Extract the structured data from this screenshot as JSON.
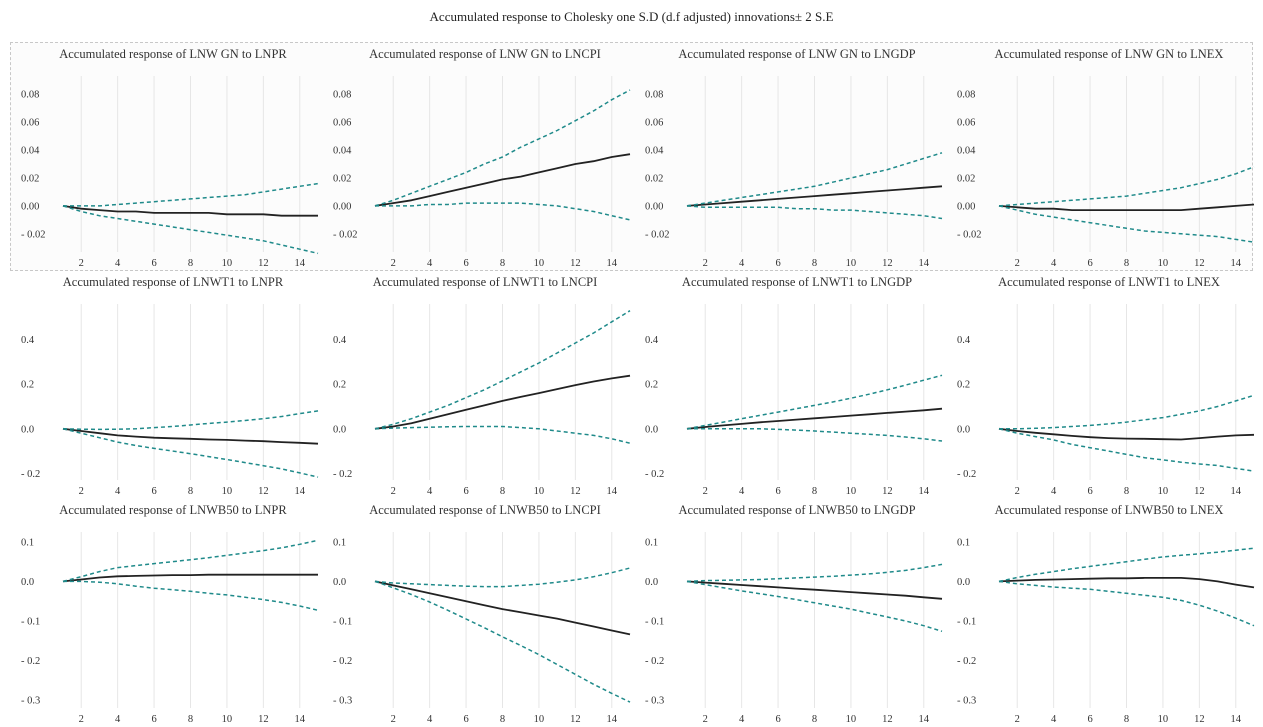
{
  "title": "Accumulated response to Cholesky one S.D (d.f adjusted) innovations± 2 S.E",
  "colors": {
    "response": "#222222",
    "band": "#1f8a8a",
    "grid": "#e6e6e6"
  },
  "row_ticks": [
    {
      "values": [
        0.08,
        0.06,
        0.04,
        0.02,
        0.0,
        -0.02
      ],
      "labels": [
        "0.08",
        "0.06",
        "0.04",
        "0.02",
        "0.00",
        "- 0.02"
      ]
    },
    {
      "values": [
        0.4,
        0.2,
        0.0,
        -0.2
      ],
      "labels": [
        "0.4",
        "0.2",
        "0.0",
        "- 0.2"
      ]
    },
    {
      "values": [
        0.1,
        0.0,
        -0.1,
        -0.2,
        -0.3
      ],
      "labels": [
        "0.1",
        "0.0",
        "- 0.1",
        "- 0.2",
        "- 0.3"
      ]
    }
  ],
  "x_ticks": [
    2,
    4,
    6,
    8,
    10,
    12,
    14
  ],
  "chart_data": [
    {
      "type": "line",
      "title": "Accumulated response of LNW GN to LNPR",
      "xlim": [
        1,
        15
      ],
      "ylim": [
        -0.033,
        0.093
      ],
      "x": [
        1,
        2,
        3,
        4,
        5,
        6,
        7,
        8,
        9,
        10,
        11,
        12,
        13,
        14,
        15
      ],
      "series": [
        {
          "role": "response",
          "values": [
            0.0,
            -0.002,
            -0.003,
            -0.004,
            -0.004,
            -0.005,
            -0.005,
            -0.005,
            -0.005,
            -0.006,
            -0.006,
            -0.006,
            -0.007,
            -0.007,
            -0.007
          ]
        },
        {
          "role": "upper",
          "values": [
            0.0,
            0.0,
            0.0,
            0.001,
            0.002,
            0.003,
            0.004,
            0.005,
            0.006,
            0.007,
            0.008,
            0.01,
            0.012,
            0.014,
            0.016
          ]
        },
        {
          "role": "lower",
          "values": [
            0.0,
            -0.004,
            -0.007,
            -0.009,
            -0.011,
            -0.013,
            -0.015,
            -0.017,
            -0.019,
            -0.021,
            -0.023,
            -0.025,
            -0.028,
            -0.031,
            -0.034
          ]
        }
      ]
    },
    {
      "type": "line",
      "title": "Accumulated response of LNW GN to LNCPI",
      "xlim": [
        1,
        15
      ],
      "ylim": [
        -0.033,
        0.093
      ],
      "x": [
        1,
        2,
        3,
        4,
        5,
        6,
        7,
        8,
        9,
        10,
        11,
        12,
        13,
        14,
        15
      ],
      "series": [
        {
          "role": "response",
          "values": [
            0.0,
            0.002,
            0.004,
            0.007,
            0.01,
            0.013,
            0.016,
            0.019,
            0.021,
            0.024,
            0.027,
            0.03,
            0.032,
            0.035,
            0.037
          ]
        },
        {
          "role": "upper",
          "values": [
            0.0,
            0.004,
            0.009,
            0.014,
            0.019,
            0.024,
            0.03,
            0.035,
            0.042,
            0.048,
            0.054,
            0.061,
            0.068,
            0.076,
            0.083
          ]
        },
        {
          "role": "lower",
          "values": [
            0.0,
            0.0,
            0.0,
            0.001,
            0.001,
            0.002,
            0.002,
            0.002,
            0.002,
            0.001,
            0.0,
            -0.002,
            -0.004,
            -0.007,
            -0.01
          ]
        }
      ]
    },
    {
      "type": "line",
      "title": "Accumulated response of LNW GN to LNGDP",
      "xlim": [
        1,
        15
      ],
      "ylim": [
        -0.033,
        0.093
      ],
      "x": [
        1,
        2,
        3,
        4,
        5,
        6,
        7,
        8,
        9,
        10,
        11,
        12,
        13,
        14,
        15
      ],
      "series": [
        {
          "role": "response",
          "values": [
            0.0,
            0.001,
            0.002,
            0.003,
            0.004,
            0.005,
            0.006,
            0.007,
            0.008,
            0.009,
            0.01,
            0.011,
            0.012,
            0.013,
            0.014
          ]
        },
        {
          "role": "upper",
          "values": [
            0.0,
            0.002,
            0.004,
            0.006,
            0.008,
            0.01,
            0.012,
            0.014,
            0.017,
            0.02,
            0.023,
            0.026,
            0.03,
            0.034,
            0.038
          ]
        },
        {
          "role": "lower",
          "values": [
            0.0,
            -0.001,
            -0.001,
            -0.001,
            -0.001,
            -0.001,
            -0.002,
            -0.002,
            -0.003,
            -0.003,
            -0.004,
            -0.005,
            -0.006,
            -0.007,
            -0.009
          ]
        }
      ]
    },
    {
      "type": "line",
      "title": "Accumulated response of LNW GN to LNEX",
      "xlim": [
        1,
        15
      ],
      "ylim": [
        -0.033,
        0.093
      ],
      "x": [
        1,
        2,
        3,
        4,
        5,
        6,
        7,
        8,
        9,
        10,
        11,
        12,
        13,
        14,
        15
      ],
      "series": [
        {
          "role": "response",
          "values": [
            0.0,
            -0.001,
            -0.002,
            -0.002,
            -0.003,
            -0.003,
            -0.003,
            -0.003,
            -0.003,
            -0.003,
            -0.003,
            -0.002,
            -0.001,
            0.0,
            0.001
          ]
        },
        {
          "role": "upper",
          "values": [
            0.0,
            0.001,
            0.002,
            0.003,
            0.004,
            0.005,
            0.006,
            0.007,
            0.009,
            0.011,
            0.013,
            0.016,
            0.019,
            0.023,
            0.028
          ]
        },
        {
          "role": "lower",
          "values": [
            0.0,
            -0.003,
            -0.006,
            -0.008,
            -0.01,
            -0.012,
            -0.014,
            -0.016,
            -0.018,
            -0.019,
            -0.02,
            -0.021,
            -0.022,
            -0.024,
            -0.026
          ]
        }
      ]
    },
    {
      "type": "line",
      "title": "Accumulated response of LNWT1 to LNPR",
      "xlim": [
        1,
        15
      ],
      "ylim": [
        -0.23,
        0.56
      ],
      "x": [
        1,
        2,
        3,
        4,
        5,
        6,
        7,
        8,
        9,
        10,
        11,
        12,
        13,
        14,
        15
      ],
      "series": [
        {
          "role": "response",
          "values": [
            0.0,
            -0.01,
            -0.02,
            -0.03,
            -0.035,
            -0.04,
            -0.043,
            -0.045,
            -0.048,
            -0.05,
            -0.053,
            -0.056,
            -0.06,
            -0.063,
            -0.067
          ]
        },
        {
          "role": "upper",
          "values": [
            0.0,
            -0.002,
            -0.003,
            -0.002,
            0.0,
            0.005,
            0.01,
            0.017,
            0.024,
            0.03,
            0.037,
            0.045,
            0.055,
            0.068,
            0.08
          ]
        },
        {
          "role": "lower",
          "values": [
            0.0,
            -0.02,
            -0.04,
            -0.06,
            -0.075,
            -0.088,
            -0.1,
            -0.112,
            -0.125,
            -0.138,
            -0.152,
            -0.166,
            -0.18,
            -0.198,
            -0.217
          ]
        }
      ]
    },
    {
      "type": "line",
      "title": "Accumulated response of LNWT1 to LNCPI",
      "xlim": [
        1,
        15
      ],
      "ylim": [
        -0.23,
        0.56
      ],
      "x": [
        1,
        2,
        3,
        4,
        5,
        6,
        7,
        8,
        9,
        10,
        11,
        12,
        13,
        14,
        15
      ],
      "series": [
        {
          "role": "response",
          "values": [
            0.0,
            0.01,
            0.025,
            0.045,
            0.065,
            0.085,
            0.105,
            0.125,
            0.143,
            0.16,
            0.178,
            0.196,
            0.212,
            0.226,
            0.238
          ]
        },
        {
          "role": "upper",
          "values": [
            0.0,
            0.02,
            0.045,
            0.075,
            0.105,
            0.14,
            0.175,
            0.215,
            0.255,
            0.295,
            0.34,
            0.385,
            0.43,
            0.48,
            0.53
          ]
        },
        {
          "role": "lower",
          "values": [
            0.0,
            0.003,
            0.005,
            0.007,
            0.009,
            0.01,
            0.01,
            0.01,
            0.005,
            0.0,
            -0.01,
            -0.02,
            -0.03,
            -0.045,
            -0.065
          ]
        }
      ]
    },
    {
      "type": "line",
      "title": "Accumulated response of LNWT1 to LNGDP",
      "xlim": [
        1,
        15
      ],
      "ylim": [
        -0.23,
        0.56
      ],
      "x": [
        1,
        2,
        3,
        4,
        5,
        6,
        7,
        8,
        9,
        10,
        11,
        12,
        13,
        14,
        15
      ],
      "series": [
        {
          "role": "response",
          "values": [
            0.0,
            0.008,
            0.015,
            0.022,
            0.029,
            0.035,
            0.041,
            0.047,
            0.053,
            0.059,
            0.065,
            0.071,
            0.077,
            0.083,
            0.09
          ]
        },
        {
          "role": "upper",
          "values": [
            0.0,
            0.015,
            0.03,
            0.045,
            0.06,
            0.075,
            0.09,
            0.105,
            0.12,
            0.137,
            0.155,
            0.175,
            0.196,
            0.218,
            0.24
          ]
        },
        {
          "role": "lower",
          "values": [
            0.0,
            0.0,
            0.0,
            0.0,
            0.0,
            -0.003,
            -0.006,
            -0.01,
            -0.015,
            -0.02,
            -0.025,
            -0.03,
            -0.037,
            -0.045,
            -0.055
          ]
        }
      ]
    },
    {
      "type": "line",
      "title": "Accumulated response of LNWT1 to LNEX",
      "xlim": [
        1,
        15
      ],
      "ylim": [
        -0.23,
        0.56
      ],
      "x": [
        1,
        2,
        3,
        4,
        5,
        6,
        7,
        8,
        9,
        10,
        11,
        12,
        13,
        14,
        15
      ],
      "series": [
        {
          "role": "response",
          "values": [
            0.0,
            -0.01,
            -0.018,
            -0.025,
            -0.032,
            -0.038,
            -0.042,
            -0.044,
            -0.045,
            -0.047,
            -0.048,
            -0.042,
            -0.035,
            -0.03,
            -0.027
          ]
        },
        {
          "role": "upper",
          "values": [
            0.0,
            0.0,
            0.002,
            0.005,
            0.01,
            0.015,
            0.022,
            0.03,
            0.04,
            0.05,
            0.065,
            0.08,
            0.1,
            0.125,
            0.15
          ]
        },
        {
          "role": "lower",
          "values": [
            0.0,
            -0.02,
            -0.035,
            -0.05,
            -0.07,
            -0.085,
            -0.1,
            -0.115,
            -0.13,
            -0.14,
            -0.15,
            -0.158,
            -0.165,
            -0.178,
            -0.19
          ]
        }
      ]
    },
    {
      "type": "line",
      "title": "Accumulated response of LNWB50 to LNPR",
      "xlim": [
        1,
        15
      ],
      "ylim": [
        -0.32,
        0.125
      ],
      "x": [
        1,
        2,
        3,
        4,
        5,
        6,
        7,
        8,
        9,
        10,
        11,
        12,
        13,
        14,
        15
      ],
      "series": [
        {
          "role": "response",
          "values": [
            0.0,
            0.005,
            0.01,
            0.013,
            0.014,
            0.015,
            0.016,
            0.016,
            0.017,
            0.017,
            0.017,
            0.017,
            0.017,
            0.017,
            0.017
          ]
        },
        {
          "role": "upper",
          "values": [
            0.0,
            0.012,
            0.025,
            0.035,
            0.04,
            0.045,
            0.05,
            0.055,
            0.06,
            0.066,
            0.072,
            0.078,
            0.085,
            0.094,
            0.104
          ]
        },
        {
          "role": "lower",
          "values": [
            0.0,
            0.0,
            -0.002,
            -0.006,
            -0.012,
            -0.017,
            -0.021,
            -0.025,
            -0.03,
            -0.034,
            -0.04,
            -0.046,
            -0.053,
            -0.062,
            -0.073
          ]
        }
      ]
    },
    {
      "type": "line",
      "title": "Accumulated response of LNWB50 to LNCPI",
      "xlim": [
        1,
        15
      ],
      "ylim": [
        -0.32,
        0.125
      ],
      "x": [
        1,
        2,
        3,
        4,
        5,
        6,
        7,
        8,
        9,
        10,
        11,
        12,
        13,
        14,
        15
      ],
      "series": [
        {
          "role": "response",
          "values": [
            0.0,
            -0.01,
            -0.02,
            -0.03,
            -0.04,
            -0.05,
            -0.06,
            -0.07,
            -0.078,
            -0.086,
            -0.094,
            -0.104,
            -0.114,
            -0.124,
            -0.134
          ]
        },
        {
          "role": "upper",
          "values": [
            0.0,
            -0.004,
            -0.006,
            -0.008,
            -0.01,
            -0.012,
            -0.013,
            -0.013,
            -0.01,
            -0.007,
            -0.002,
            0.004,
            0.012,
            0.022,
            0.034
          ]
        },
        {
          "role": "lower",
          "values": [
            0.0,
            -0.016,
            -0.033,
            -0.052,
            -0.073,
            -0.095,
            -0.117,
            -0.14,
            -0.162,
            -0.185,
            -0.21,
            -0.235,
            -0.26,
            -0.283,
            -0.305
          ]
        }
      ]
    },
    {
      "type": "line",
      "title": "Accumulated response of LNWB50 to LNGDP",
      "xlim": [
        1,
        15
      ],
      "ylim": [
        -0.32,
        0.125
      ],
      "x": [
        1,
        2,
        3,
        4,
        5,
        6,
        7,
        8,
        9,
        10,
        11,
        12,
        13,
        14,
        15
      ],
      "series": [
        {
          "role": "response",
          "values": [
            0.0,
            -0.003,
            -0.006,
            -0.009,
            -0.012,
            -0.015,
            -0.018,
            -0.021,
            -0.024,
            -0.027,
            -0.03,
            -0.033,
            -0.036,
            -0.04,
            -0.044
          ]
        },
        {
          "role": "upper",
          "values": [
            0.0,
            0.002,
            0.003,
            0.004,
            0.005,
            0.007,
            0.009,
            0.011,
            0.013,
            0.016,
            0.019,
            0.023,
            0.028,
            0.035,
            0.043
          ]
        },
        {
          "role": "lower",
          "values": [
            0.0,
            -0.008,
            -0.016,
            -0.024,
            -0.031,
            -0.038,
            -0.046,
            -0.054,
            -0.062,
            -0.07,
            -0.08,
            -0.09,
            -0.1,
            -0.112,
            -0.126
          ]
        }
      ]
    },
    {
      "type": "line",
      "title": "Accumulated response of LNWB50 to LNEX",
      "xlim": [
        1,
        15
      ],
      "ylim": [
        -0.32,
        0.125
      ],
      "x": [
        1,
        2,
        3,
        4,
        5,
        6,
        7,
        8,
        9,
        10,
        11,
        12,
        13,
        14,
        15
      ],
      "series": [
        {
          "role": "response",
          "values": [
            0.0,
            0.002,
            0.004,
            0.005,
            0.006,
            0.007,
            0.008,
            0.008,
            0.009,
            0.009,
            0.009,
            0.006,
            0.0,
            -0.008,
            -0.015
          ]
        },
        {
          "role": "upper",
          "values": [
            0.0,
            0.01,
            0.018,
            0.025,
            0.032,
            0.038,
            0.044,
            0.05,
            0.056,
            0.062,
            0.066,
            0.07,
            0.074,
            0.079,
            0.084
          ]
        },
        {
          "role": "lower",
          "values": [
            0.0,
            -0.006,
            -0.01,
            -0.014,
            -0.017,
            -0.02,
            -0.025,
            -0.03,
            -0.035,
            -0.04,
            -0.048,
            -0.06,
            -0.075,
            -0.093,
            -0.112
          ]
        }
      ]
    }
  ]
}
